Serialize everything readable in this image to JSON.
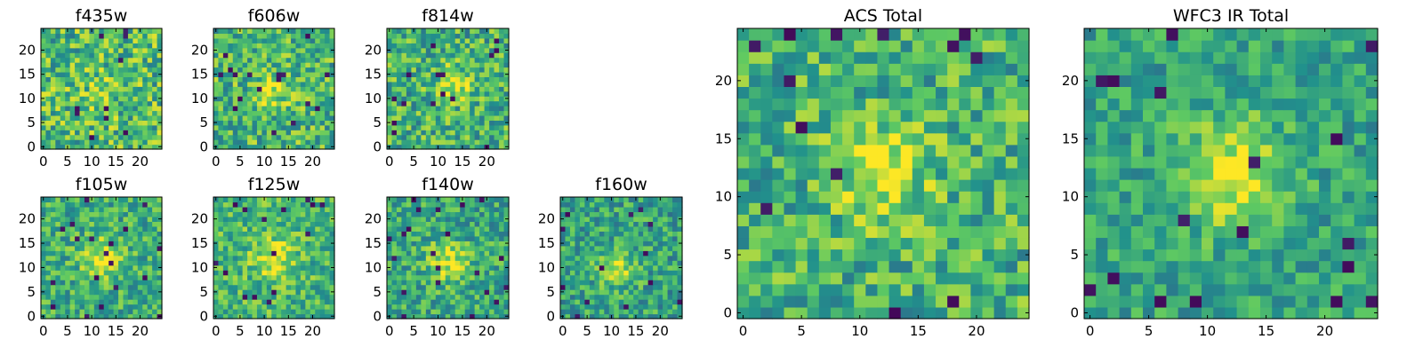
{
  "figure": {
    "colormap": "viridis",
    "colormap_stops": [
      "#440154",
      "#3b528b",
      "#21918c",
      "#5ec962",
      "#fde725"
    ],
    "frame_color": "#000000",
    "background": "#ffffff"
  },
  "chart_data": [
    {
      "id": "f435w",
      "type": "heatmap",
      "title": "f435w",
      "grid_size": 25,
      "x_ticks": [
        0,
        5,
        10,
        15,
        20
      ],
      "y_ticks": [
        0,
        5,
        10,
        15,
        20
      ],
      "xlim": [
        0,
        25
      ],
      "ylim": [
        0,
        25
      ],
      "source_center": [
        12,
        12
      ],
      "source_amplitude": 0.1,
      "source_sigma": 3.0,
      "noise": 0.28,
      "level": 0.68,
      "seed": 11
    },
    {
      "id": "f606w",
      "type": "heatmap",
      "title": "f606w",
      "grid_size": 25,
      "x_ticks": [
        0,
        5,
        10,
        15,
        20
      ],
      "y_ticks": [
        0,
        5,
        10,
        15,
        20
      ],
      "xlim": [
        0,
        25
      ],
      "ylim": [
        0,
        25
      ],
      "source_center": [
        12,
        12
      ],
      "source_amplitude": 0.25,
      "source_sigma": 2.6,
      "noise": 0.26,
      "level": 0.66,
      "seed": 23
    },
    {
      "id": "f814w",
      "type": "heatmap",
      "title": "f814w",
      "grid_size": 25,
      "x_ticks": [
        0,
        5,
        10,
        15,
        20
      ],
      "y_ticks": [
        0,
        5,
        10,
        15,
        20
      ],
      "xlim": [
        0,
        25
      ],
      "ylim": [
        0,
        25
      ],
      "source_center": [
        13,
        13
      ],
      "source_amplitude": 0.3,
      "source_sigma": 2.4,
      "noise": 0.26,
      "level": 0.64,
      "seed": 37
    },
    {
      "id": "f105w",
      "type": "heatmap",
      "title": "f105w",
      "grid_size": 25,
      "x_ticks": [
        0,
        5,
        10,
        15,
        20
      ],
      "y_ticks": [
        0,
        5,
        10,
        15,
        20
      ],
      "xlim": [
        0,
        25
      ],
      "ylim": [
        0,
        25
      ],
      "source_center": [
        12,
        12
      ],
      "source_amplitude": 0.3,
      "source_sigma": 3.0,
      "noise": 0.22,
      "level": 0.62,
      "seed": 41
    },
    {
      "id": "f125w",
      "type": "heatmap",
      "title": "f125w",
      "grid_size": 25,
      "x_ticks": [
        0,
        5,
        10,
        15,
        20
      ],
      "y_ticks": [
        0,
        5,
        10,
        15,
        20
      ],
      "xlim": [
        0,
        25
      ],
      "ylim": [
        0,
        25
      ],
      "source_center": [
        12,
        12
      ],
      "source_amplitude": 0.3,
      "source_sigma": 3.0,
      "noise": 0.22,
      "level": 0.66,
      "seed": 53
    },
    {
      "id": "f140w",
      "type": "heatmap",
      "title": "f140w",
      "grid_size": 25,
      "x_ticks": [
        0,
        5,
        10,
        15,
        20
      ],
      "y_ticks": [
        0,
        5,
        10,
        15,
        20
      ],
      "xlim": [
        0,
        25
      ],
      "ylim": [
        0,
        25
      ],
      "source_center": [
        12,
        11
      ],
      "source_amplitude": 0.32,
      "source_sigma": 3.0,
      "noise": 0.22,
      "level": 0.6,
      "seed": 67
    },
    {
      "id": "f160w",
      "type": "heatmap",
      "title": "f160w",
      "grid_size": 25,
      "x_ticks": [
        0,
        5,
        10,
        15,
        20
      ],
      "y_ticks": [
        0,
        5,
        10,
        15,
        20
      ],
      "xlim": [
        0,
        25
      ],
      "ylim": [
        0,
        25
      ],
      "source_center": [
        11,
        10
      ],
      "source_amplitude": 0.35,
      "source_sigma": 2.6,
      "noise": 0.22,
      "level": 0.58,
      "seed": 79
    },
    {
      "id": "acs_total",
      "type": "heatmap",
      "title": "ACS Total",
      "grid_size": 25,
      "x_ticks": [
        0,
        5,
        10,
        15,
        20
      ],
      "y_ticks": [
        0,
        5,
        10,
        15,
        20
      ],
      "xlim": [
        0,
        25
      ],
      "ylim": [
        0,
        25
      ],
      "source_center": [
        12,
        12
      ],
      "source_amplitude": 0.28,
      "source_sigma": 3.0,
      "noise": 0.24,
      "level": 0.64,
      "seed": 97
    },
    {
      "id": "wfc3_ir_total",
      "type": "heatmap",
      "title": "WFC3 IR Total",
      "grid_size": 25,
      "x_ticks": [
        0,
        5,
        10,
        15,
        20
      ],
      "y_ticks": [
        0,
        5,
        10,
        15,
        20
      ],
      "xlim": [
        0,
        25
      ],
      "ylim": [
        0,
        25
      ],
      "source_center": [
        12,
        12
      ],
      "source_amplitude": 0.4,
      "source_sigma": 3.2,
      "noise": 0.18,
      "level": 0.58,
      "seed": 113
    }
  ]
}
